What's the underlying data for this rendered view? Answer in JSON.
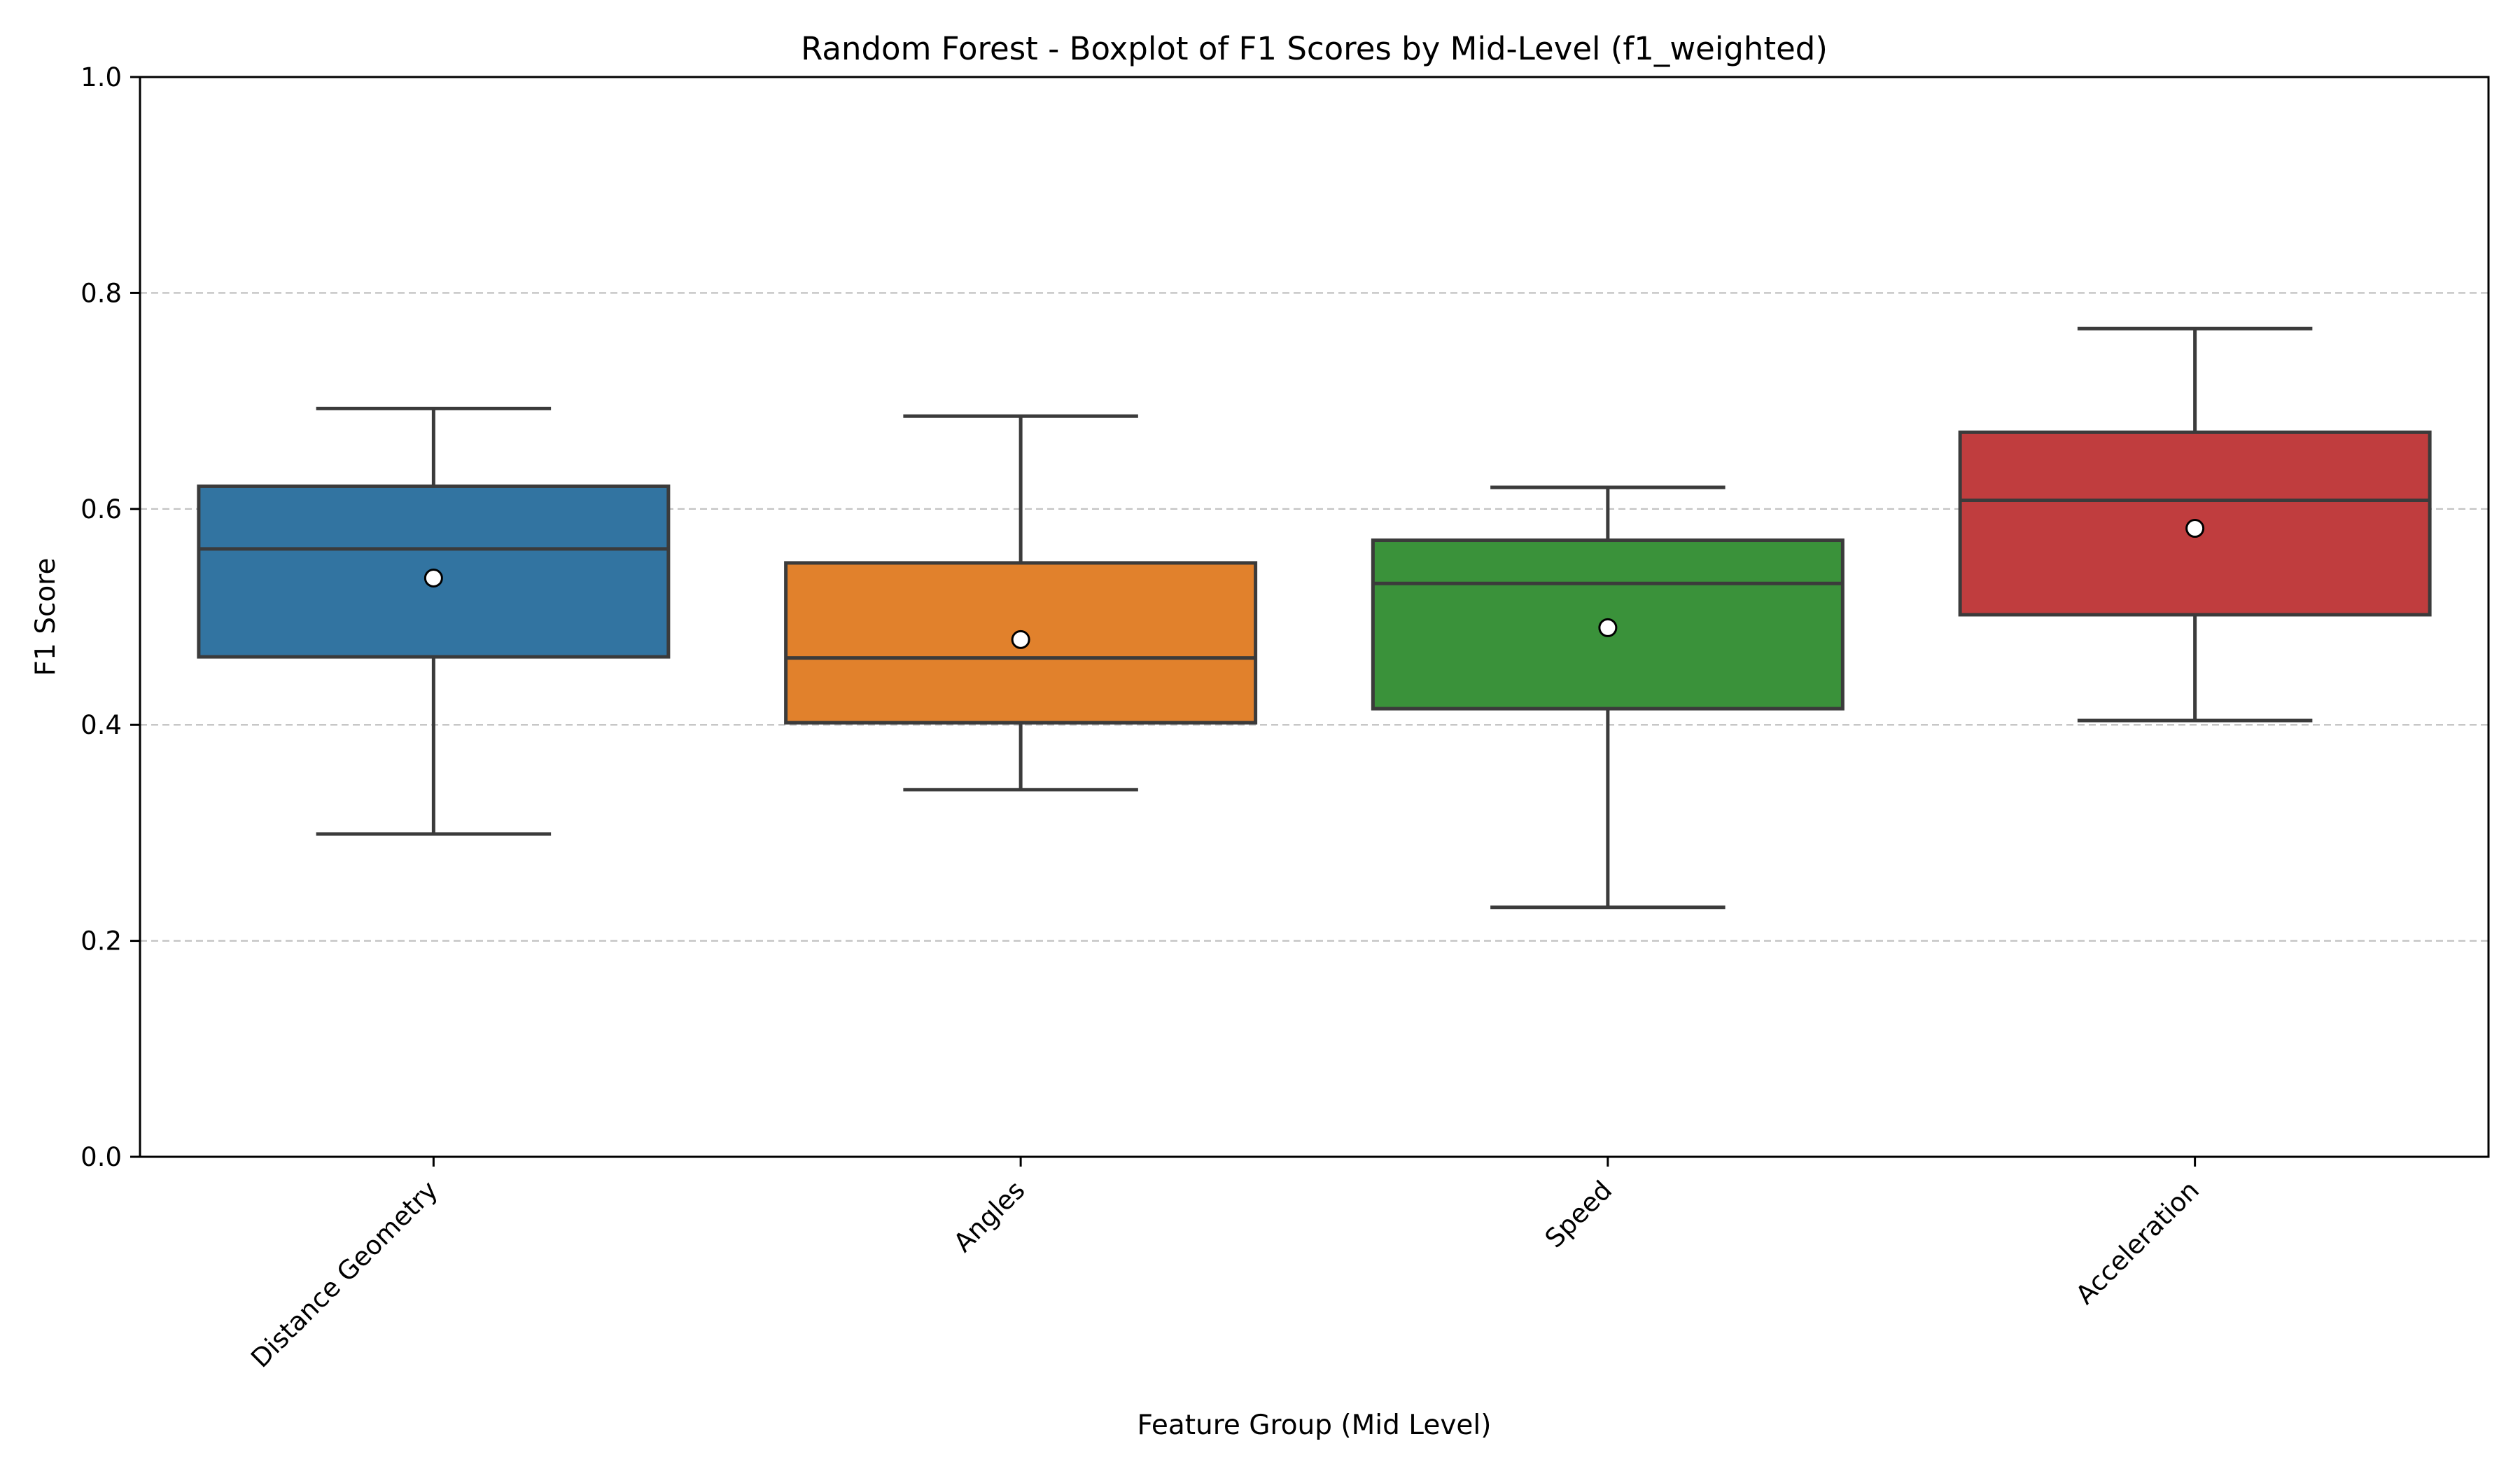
{
  "chart_data": {
    "type": "boxplot",
    "title": "Random Forest - Boxplot of F1 Scores by Mid-Level (f1_weighted)",
    "xlabel": "Feature Group (Mid Level)",
    "ylabel": "F1 Score",
    "ylim": [
      0.0,
      1.0
    ],
    "yticks": [
      "0.0",
      "0.2",
      "0.4",
      "0.6",
      "0.8",
      "1.0"
    ],
    "grid": "y-dashed",
    "categories": [
      "Distance Geometry",
      "Angles",
      "Speed",
      "Acceleration"
    ],
    "boxes": [
      {
        "category": "Distance Geometry",
        "whisker_low": 0.299,
        "q1": 0.463,
        "median": 0.563,
        "q3": 0.621,
        "whisker_high": 0.693,
        "mean": 0.536,
        "color": "#3274a1"
      },
      {
        "category": "Angles",
        "whisker_low": 0.34,
        "q1": 0.402,
        "median": 0.462,
        "q3": 0.55,
        "whisker_high": 0.686,
        "mean": 0.479,
        "color": "#e1812c"
      },
      {
        "category": "Speed",
        "whisker_low": 0.231,
        "q1": 0.415,
        "median": 0.531,
        "q3": 0.571,
        "whisker_high": 0.62,
        "mean": 0.49,
        "color": "#3a923a"
      },
      {
        "category": "Acceleration",
        "whisker_low": 0.404,
        "q1": 0.502,
        "median": 0.608,
        "q3": 0.671,
        "whisker_high": 0.767,
        "mean": 0.582,
        "color": "#c03d3e"
      }
    ]
  }
}
